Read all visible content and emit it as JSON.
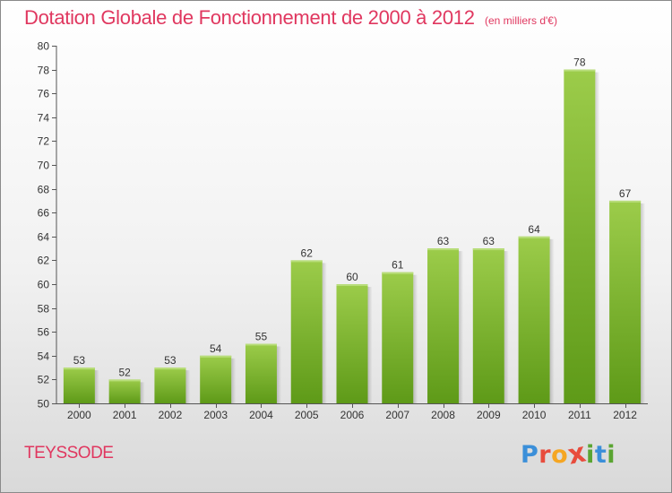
{
  "header": {
    "title": "Dotation Globale de Fonctionnement de 2000 à 2012",
    "unit": "(en milliers d'€)"
  },
  "footer": {
    "commune": "TEYSSODE",
    "logo_text": "Proxiti"
  },
  "colors": {
    "title": "#e0375f",
    "bar_top": "#9ccc4a",
    "bar_bottom": "#5e9a18",
    "logo_letters": [
      "#3b8fd9",
      "#e84c3d",
      "#f5a623",
      "#e84c3d",
      "#5aa532",
      "#3b8fd9",
      "#5aa532"
    ]
  },
  "chart_data": {
    "type": "bar",
    "title": "Dotation Globale de Fonctionnement de 2000 à 2012",
    "subtitle": "(en milliers d'€)",
    "xlabel": "",
    "ylabel": "",
    "categories": [
      "2000",
      "2001",
      "2002",
      "2003",
      "2004",
      "2005",
      "2006",
      "2007",
      "2008",
      "2009",
      "2010",
      "2011",
      "2012"
    ],
    "values": [
      53,
      52,
      53,
      54,
      55,
      62,
      60,
      61,
      63,
      63,
      64,
      78,
      67
    ],
    "ylim": [
      50,
      80
    ],
    "yticks": [
      50,
      52,
      54,
      56,
      58,
      60,
      62,
      64,
      66,
      68,
      70,
      72,
      74,
      76,
      78,
      80
    ],
    "grid": false,
    "legend": "none"
  }
}
